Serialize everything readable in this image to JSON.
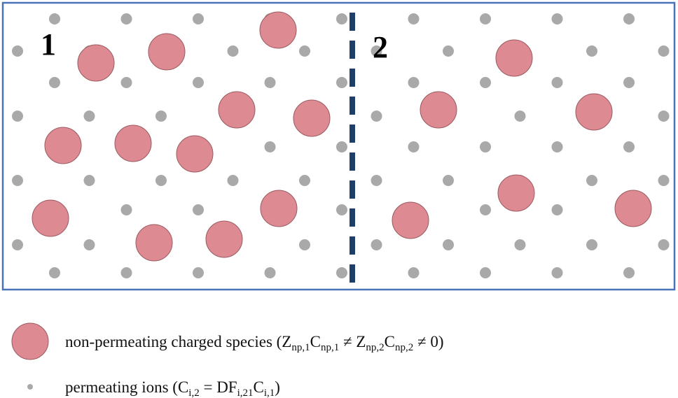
{
  "compartments": [
    {
      "label": "1"
    },
    {
      "label": "2"
    }
  ],
  "legend": {
    "items": [
      {
        "label": [
          {
            "text": "non-permeating charged species (Z"
          },
          {
            "sub": "np,1"
          },
          {
            "text": "C"
          },
          {
            "sub": "np,1"
          },
          {
            "text": " ≠ Z"
          },
          {
            "sub": "np,2"
          },
          {
            "text": "C"
          },
          {
            "sub": "np,2"
          },
          {
            "text": " ≠ 0)"
          }
        ]
      },
      {
        "label": [
          {
            "text": "permeating ions (C"
          },
          {
            "sub": "i,2"
          },
          {
            "text": " = DF"
          },
          {
            "sub": "i,21"
          },
          {
            "text": "C"
          },
          {
            "sub": "i,1"
          },
          {
            "text": ")"
          }
        ]
      }
    ]
  }
}
